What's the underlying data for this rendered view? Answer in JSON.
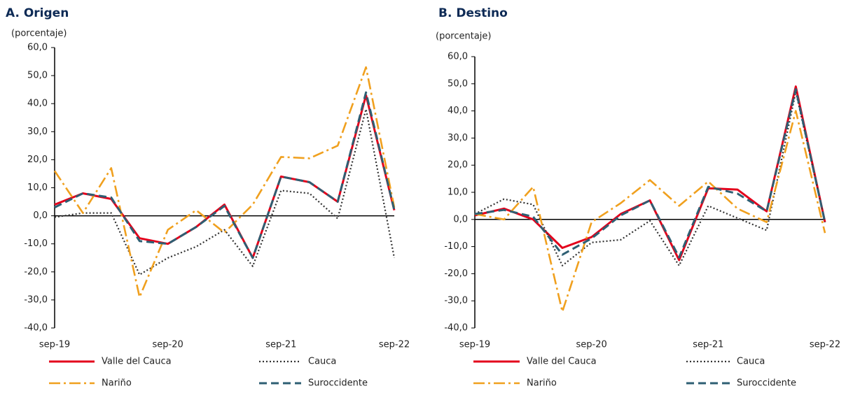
{
  "chart_data": [
    {
      "type": "line",
      "title": "A. Origen",
      "y_label": "(porcentaje)",
      "categories": [
        "sep-19",
        null,
        null,
        null,
        "sep-20",
        null,
        null,
        null,
        "sep-21",
        null,
        null,
        null,
        "sep-22"
      ],
      "ylim": [
        -40,
        60
      ],
      "yticks": [
        {
          "value": -40,
          "label": "-40,0"
        },
        {
          "value": -30,
          "label": "-30,0"
        },
        {
          "value": -20,
          "label": "-20,0"
        },
        {
          "value": -10,
          "label": "-10,0"
        },
        {
          "value": 0,
          "label": "0,0"
        },
        {
          "value": 10,
          "label": "10,0"
        },
        {
          "value": 20,
          "label": "20,0"
        },
        {
          "value": 30,
          "label": "30,0"
        },
        {
          "value": 40,
          "label": "40,0"
        },
        {
          "value": 50,
          "label": "50,0"
        },
        {
          "value": 60,
          "label": "60,0"
        }
      ],
      "series": [
        {
          "name": "Valle del Cauca",
          "color": "#e3001b",
          "style": "solid",
          "values": [
            4,
            8,
            6,
            -8,
            -10,
            -4,
            4,
            -15,
            14,
            12,
            5,
            43,
            2
          ]
        },
        {
          "name": "Cauca",
          "color": "#333333",
          "style": "dotted",
          "values": [
            -0.5,
            1,
            1,
            -21,
            -15,
            -11,
            -5,
            -18,
            9,
            8,
            -1,
            38,
            -15
          ]
        },
        {
          "name": "Nariño",
          "color": "#f0a01e",
          "style": "dashdot",
          "values": [
            16,
            1,
            17,
            -29,
            -5,
            2,
            -6,
            4,
            21,
            20.5,
            25,
            53,
            3
          ]
        },
        {
          "name": "Suroccidente",
          "color": "#2e5f73",
          "style": "dashed",
          "values": [
            3,
            8,
            6.5,
            -9,
            -10,
            -4,
            3.5,
            -15,
            14,
            12,
            5,
            44,
            2
          ]
        }
      ]
    },
    {
      "type": "line",
      "title": "B. Destino",
      "y_label": "(porcentaje)",
      "categories": [
        "sep-19",
        null,
        null,
        null,
        "sep-20",
        null,
        null,
        null,
        "sep-21",
        null,
        null,
        null,
        "sep-22"
      ],
      "ylim": [
        -40,
        60
      ],
      "yticks": [
        {
          "value": -40,
          "label": "-40,0"
        },
        {
          "value": -30,
          "label": "-30,0"
        },
        {
          "value": -20,
          "label": "-20,0"
        },
        {
          "value": -10,
          "label": "-10,0"
        },
        {
          "value": 0,
          "label": "0,0"
        },
        {
          "value": 10,
          "label": "10,0"
        },
        {
          "value": 20,
          "label": "20,0"
        },
        {
          "value": 30,
          "label": "30,0"
        },
        {
          "value": 40,
          "label": "40,0"
        },
        {
          "value": 50,
          "label": "50,0"
        },
        {
          "value": 60,
          "label": "60,0"
        }
      ],
      "series": [
        {
          "name": "Valle del Cauca",
          "color": "#e3001b",
          "style": "solid",
          "values": [
            1.5,
            4,
            0,
            -10.5,
            -6.5,
            2,
            7,
            -15,
            11.5,
            11,
            3,
            49,
            -1
          ]
        },
        {
          "name": "Cauca",
          "color": "#333333",
          "style": "dotted",
          "values": [
            2,
            7.5,
            5.5,
            -17,
            -8.5,
            -7.5,
            -0.5,
            -17,
            5,
            0.5,
            -4,
            47,
            -1
          ]
        },
        {
          "name": "Nariño",
          "color": "#f0a01e",
          "style": "dashdot",
          "values": [
            2,
            0,
            12,
            -34,
            -1,
            6,
            14.5,
            5,
            14,
            4,
            -1,
            40,
            -5
          ]
        },
        {
          "name": "Suroccidente",
          "color": "#2e5f73",
          "style": "dashed",
          "values": [
            2,
            3.5,
            1,
            -13,
            -7,
            1.5,
            7,
            -14,
            12,
            9.5,
            3,
            48,
            -1
          ]
        }
      ]
    }
  ]
}
